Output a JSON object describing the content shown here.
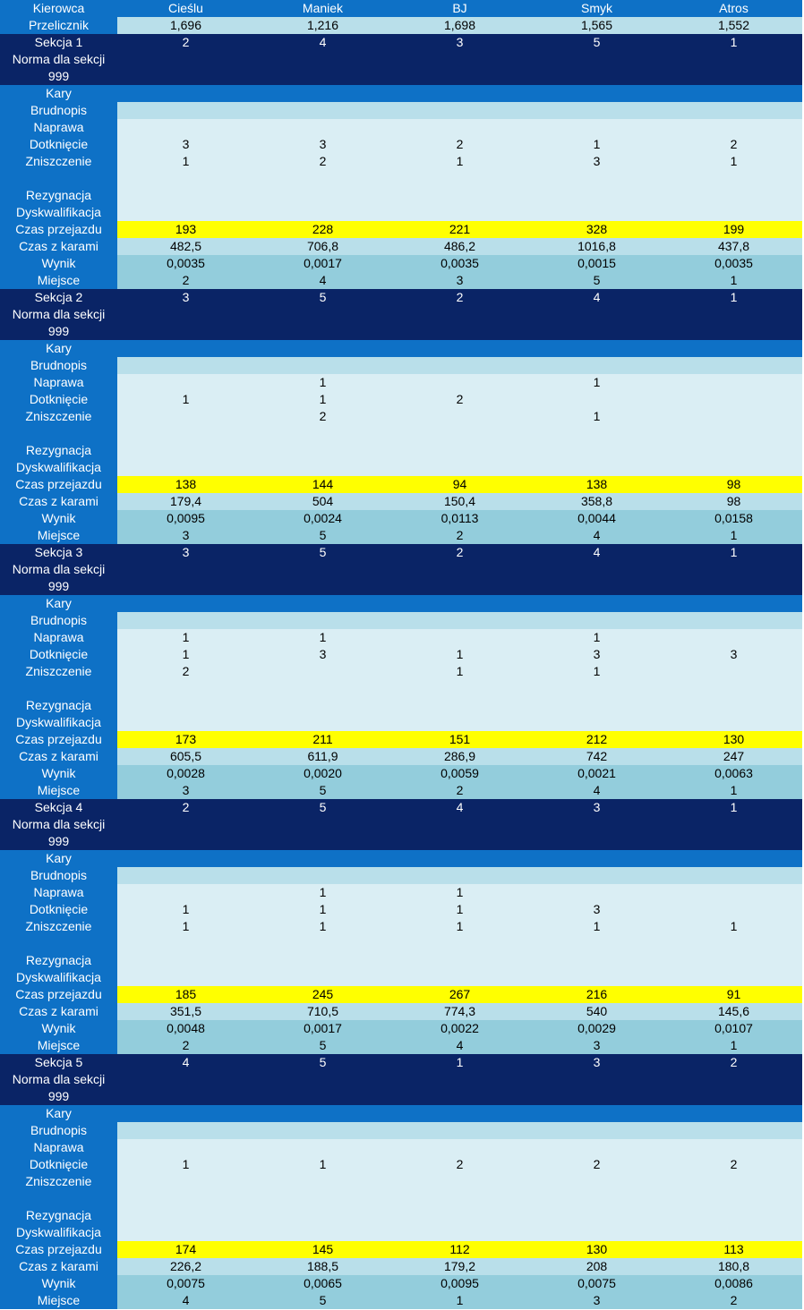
{
  "header": {
    "label": "Kierowca",
    "drivers": [
      "Cieślu",
      "Maniek",
      "BJ",
      "Smyk",
      "Atros"
    ]
  },
  "przelicznik": {
    "label": "Przelicznik",
    "values": [
      "1,696",
      "1,216",
      "1,698",
      "1,565",
      "1,552"
    ]
  },
  "sections": [
    {
      "title": "Sekcja 1",
      "start_order": [
        "2",
        "4",
        "3",
        "5",
        "1"
      ],
      "norma_label": "Norma dla sekcji",
      "norma_value": "999",
      "kary_label": "Kary",
      "brudnopis": {
        "label": "Brudnopis",
        "values": [
          "",
          "",
          "",
          "",
          ""
        ]
      },
      "naprawa": {
        "label": "Naprawa",
        "values": [
          "",
          "",
          "",
          "",
          ""
        ]
      },
      "dotkniecie": {
        "label": "Dotknięcie",
        "values": [
          "3",
          "3",
          "2",
          "1",
          "2"
        ]
      },
      "zniszczenie": {
        "label": "Zniszczenie",
        "values": [
          "1",
          "2",
          "1",
          "3",
          "1"
        ]
      },
      "rezygnacja": {
        "label": "Rezygnacja",
        "values": [
          "",
          "",
          "",
          "",
          ""
        ]
      },
      "dyskwalifikacja": {
        "label": "Dyskwalifikacja",
        "values": [
          "",
          "",
          "",
          "",
          ""
        ]
      },
      "czas_przejazdu": {
        "label": "Czas przejazdu",
        "values": [
          "193",
          "228",
          "221",
          "328",
          "199"
        ]
      },
      "czas_z_karami": {
        "label": "Czas z karami",
        "values": [
          "482,5",
          "706,8",
          "486,2",
          "1016,8",
          "437,8"
        ]
      },
      "wynik": {
        "label": "Wynik",
        "values": [
          "0,0035",
          "0,0017",
          "0,0035",
          "0,0015",
          "0,0035"
        ]
      },
      "miejsce": {
        "label": "Miejsce",
        "values": [
          "2",
          "4",
          "3",
          "5",
          "1"
        ]
      }
    },
    {
      "title": "Sekcja 2",
      "start_order": [
        "3",
        "5",
        "2",
        "4",
        "1"
      ],
      "norma_label": "Norma dla sekcji",
      "norma_value": "999",
      "kary_label": "Kary",
      "brudnopis": {
        "label": "Brudnopis",
        "values": [
          "",
          "",
          "",
          "",
          ""
        ]
      },
      "naprawa": {
        "label": "Naprawa",
        "values": [
          "",
          "1",
          "",
          "1",
          ""
        ]
      },
      "dotkniecie": {
        "label": "Dotknięcie",
        "values": [
          "1",
          "1",
          "2",
          "",
          ""
        ]
      },
      "zniszczenie": {
        "label": "Zniszczenie",
        "values": [
          "",
          "2",
          "",
          "1",
          ""
        ]
      },
      "rezygnacja": {
        "label": "Rezygnacja",
        "values": [
          "",
          "",
          "",
          "",
          ""
        ]
      },
      "dyskwalifikacja": {
        "label": "Dyskwalifikacja",
        "values": [
          "",
          "",
          "",
          "",
          ""
        ]
      },
      "czas_przejazdu": {
        "label": "Czas przejazdu",
        "values": [
          "138",
          "144",
          "94",
          "138",
          "98"
        ]
      },
      "czas_z_karami": {
        "label": "Czas z karami",
        "values": [
          "179,4",
          "504",
          "150,4",
          "358,8",
          "98"
        ]
      },
      "wynik": {
        "label": "Wynik",
        "values": [
          "0,0095",
          "0,0024",
          "0,0113",
          "0,0044",
          "0,0158"
        ]
      },
      "miejsce": {
        "label": "Miejsce",
        "values": [
          "3",
          "5",
          "2",
          "4",
          "1"
        ]
      }
    },
    {
      "title": "Sekcja 3",
      "start_order": [
        "3",
        "5",
        "2",
        "4",
        "1"
      ],
      "norma_label": "Norma dla sekcji",
      "norma_value": "999",
      "kary_label": "Kary",
      "brudnopis": {
        "label": "Brudnopis",
        "values": [
          "",
          "",
          "",
          "",
          ""
        ]
      },
      "naprawa": {
        "label": "Naprawa",
        "values": [
          "1",
          "1",
          "",
          "1",
          ""
        ]
      },
      "dotkniecie": {
        "label": "Dotknięcie",
        "values": [
          "1",
          "3",
          "1",
          "3",
          "3"
        ]
      },
      "zniszczenie": {
        "label": "Zniszczenie",
        "values": [
          "2",
          "",
          "1",
          "1",
          ""
        ]
      },
      "rezygnacja": {
        "label": "Rezygnacja",
        "values": [
          "",
          "",
          "",
          "",
          ""
        ]
      },
      "dyskwalifikacja": {
        "label": "Dyskwalifikacja",
        "values": [
          "",
          "",
          "",
          "",
          ""
        ]
      },
      "czas_przejazdu": {
        "label": "Czas przejazdu",
        "values": [
          "173",
          "211",
          "151",
          "212",
          "130"
        ]
      },
      "czas_z_karami": {
        "label": "Czas z karami",
        "values": [
          "605,5",
          "611,9",
          "286,9",
          "742",
          "247"
        ]
      },
      "wynik": {
        "label": "Wynik",
        "values": [
          "0,0028",
          "0,0020",
          "0,0059",
          "0,0021",
          "0,0063"
        ]
      },
      "miejsce": {
        "label": "Miejsce",
        "values": [
          "3",
          "5",
          "2",
          "4",
          "1"
        ]
      }
    },
    {
      "title": "Sekcja 4",
      "start_order": [
        "2",
        "5",
        "4",
        "3",
        "1"
      ],
      "norma_label": "Norma dla sekcji",
      "norma_value": "999",
      "kary_label": "Kary",
      "brudnopis": {
        "label": "Brudnopis",
        "values": [
          "",
          "",
          "",
          "",
          ""
        ]
      },
      "naprawa": {
        "label": "Naprawa",
        "values": [
          "",
          "1",
          "1",
          "",
          ""
        ]
      },
      "dotkniecie": {
        "label": "Dotknięcie",
        "values": [
          "1",
          "1",
          "1",
          "3",
          ""
        ]
      },
      "zniszczenie": {
        "label": "Zniszczenie",
        "values": [
          "1",
          "1",
          "1",
          "1",
          "1"
        ]
      },
      "rezygnacja": {
        "label": "Rezygnacja",
        "values": [
          "",
          "",
          "",
          "",
          ""
        ]
      },
      "dyskwalifikacja": {
        "label": "Dyskwalifikacja",
        "values": [
          "",
          "",
          "",
          "",
          ""
        ]
      },
      "czas_przejazdu": {
        "label": "Czas przejazdu",
        "values": [
          "185",
          "245",
          "267",
          "216",
          "91"
        ]
      },
      "czas_z_karami": {
        "label": "Czas z karami",
        "values": [
          "351,5",
          "710,5",
          "774,3",
          "540",
          "145,6"
        ]
      },
      "wynik": {
        "label": "Wynik",
        "values": [
          "0,0048",
          "0,0017",
          "0,0022",
          "0,0029",
          "0,0107"
        ]
      },
      "miejsce": {
        "label": "Miejsce",
        "values": [
          "2",
          "5",
          "4",
          "3",
          "1"
        ]
      }
    },
    {
      "title": "Sekcja 5",
      "start_order": [
        "4",
        "5",
        "1",
        "3",
        "2"
      ],
      "norma_label": "Norma dla sekcji",
      "norma_value": "999",
      "kary_label": "Kary",
      "brudnopis": {
        "label": "Brudnopis",
        "values": [
          "",
          "",
          "",
          "",
          ""
        ]
      },
      "naprawa": {
        "label": "Naprawa",
        "values": [
          "",
          "",
          "",
          "",
          ""
        ]
      },
      "dotkniecie": {
        "label": "Dotknięcie",
        "values": [
          "1",
          "1",
          "2",
          "2",
          "2"
        ]
      },
      "zniszczenie": {
        "label": "Zniszczenie",
        "values": [
          "",
          "",
          "",
          "",
          ""
        ]
      },
      "rezygnacja": {
        "label": "Rezygnacja",
        "values": [
          "",
          "",
          "",
          "",
          ""
        ]
      },
      "dyskwalifikacja": {
        "label": "Dyskwalifikacja",
        "values": [
          "",
          "",
          "",
          "",
          ""
        ]
      },
      "czas_przejazdu": {
        "label": "Czas przejazdu",
        "values": [
          "174",
          "145",
          "112",
          "130",
          "113"
        ]
      },
      "czas_z_karami": {
        "label": "Czas z karami",
        "values": [
          "226,2",
          "188,5",
          "179,2",
          "208",
          "180,8"
        ]
      },
      "wynik": {
        "label": "Wynik",
        "values": [
          "0,0075",
          "0,0065",
          "0,0095",
          "0,0075",
          "0,0086"
        ]
      },
      "miejsce": {
        "label": "Miejsce",
        "values": [
          "4",
          "5",
          "1",
          "3",
          "2"
        ]
      }
    }
  ]
}
